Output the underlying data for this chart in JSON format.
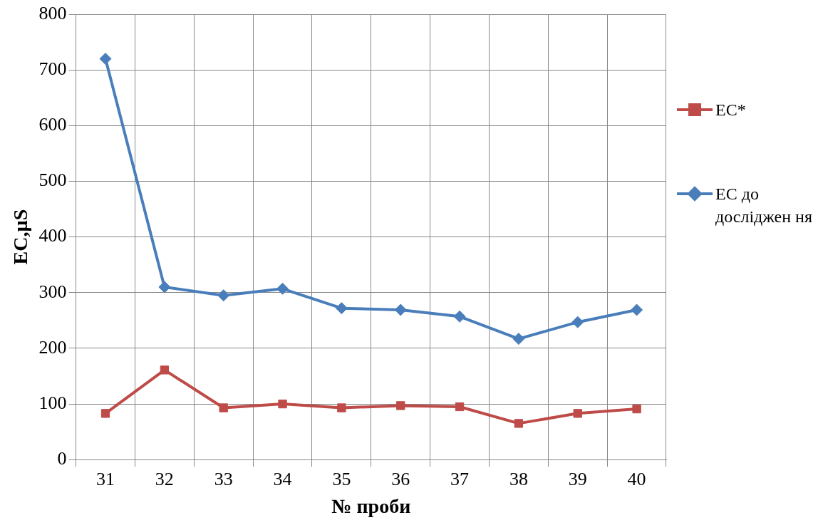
{
  "chart_data": {
    "type": "line",
    "xlabel": "№ проби",
    "ylabel": "EC,µS",
    "categories": [
      "31",
      "32",
      "33",
      "34",
      "35",
      "36",
      "37",
      "38",
      "39",
      "40"
    ],
    "series": [
      {
        "name": "ЕС*",
        "color": "#be4b48",
        "marker": "square",
        "values": [
          83,
          161,
          93,
          100,
          93,
          97,
          95,
          65,
          83,
          91
        ]
      },
      {
        "name": "ЕС до досліджен ня",
        "color": "#4a7ebb",
        "marker": "diamond",
        "values": [
          720,
          310,
          295,
          307,
          272,
          269,
          257,
          217,
          247,
          269
        ]
      }
    ],
    "ylim": [
      0,
      800
    ],
    "yticks": [
      0,
      100,
      200,
      300,
      400,
      500,
      600,
      700,
      800
    ],
    "grid": true,
    "legend": "right",
    "line_style": "solid"
  }
}
